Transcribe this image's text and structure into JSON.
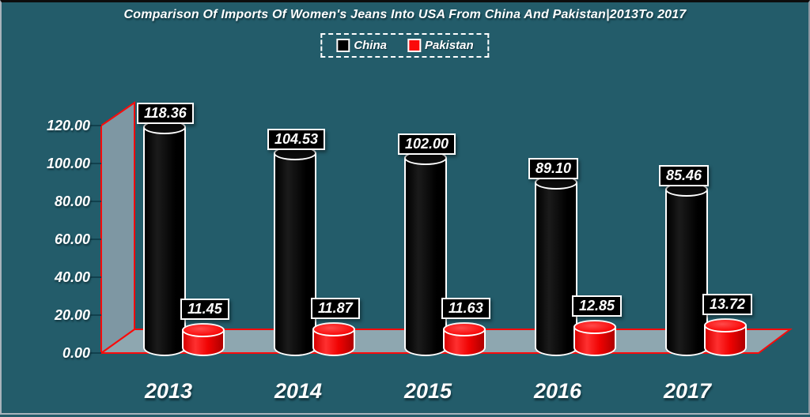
{
  "chart_data": {
    "type": "bar",
    "style": "3d-cylinder",
    "title": "Comparison Of Imports Of Women's Jeans Into USA From China And Pakistan|2013To 2017",
    "categories": [
      "2013",
      "2014",
      "2015",
      "2016",
      "2017"
    ],
    "series": [
      {
        "name": "China",
        "color": "#000000",
        "values": [
          118.36,
          104.53,
          102.0,
          89.1,
          85.46
        ]
      },
      {
        "name": "Pakistan",
        "color": "#fb0a0a",
        "values": [
          11.45,
          11.87,
          11.63,
          12.85,
          13.72
        ]
      }
    ],
    "data_labels": {
      "china": [
        "118.36",
        "104.53",
        "102.00",
        "89.10",
        "85.46"
      ],
      "pakistan": [
        "11.45",
        "11.87",
        "11.63",
        "12.85",
        "13.72"
      ]
    },
    "y_axis": {
      "min": 0,
      "max": 120,
      "step": 20,
      "tick_labels": [
        "0.00",
        "20.00",
        "40.00",
        "60.00",
        "80.00",
        "100.00",
        "120.00"
      ]
    },
    "legend": {
      "position": "top",
      "entries": [
        {
          "label": "China",
          "color": "#000000"
        },
        {
          "label": "Pakistan",
          "color": "#fb0a0a"
        }
      ]
    },
    "grid": false
  },
  "colors": {
    "background": "#235c6a",
    "wall": "#7e97a3",
    "floor": "#8ea7b0",
    "edge": "#fb0a0a",
    "text": "#ffffff",
    "label_box_bg": "#000000",
    "label_box_border": "#ffffff"
  }
}
